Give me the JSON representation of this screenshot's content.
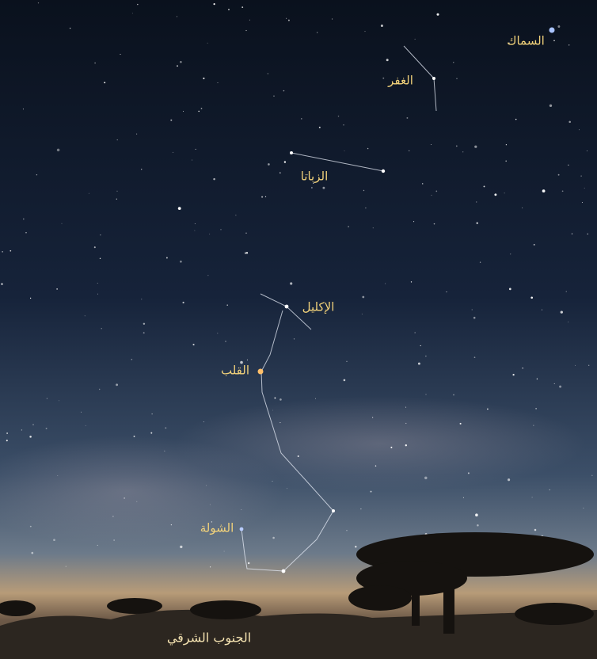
{
  "labels": [
    "السماك",
    "الغفر",
    "الزبانا",
    "الإكليل",
    "القلب",
    "الشولة"
  ],
  "caption": "الجنوب الشرقي"
}
